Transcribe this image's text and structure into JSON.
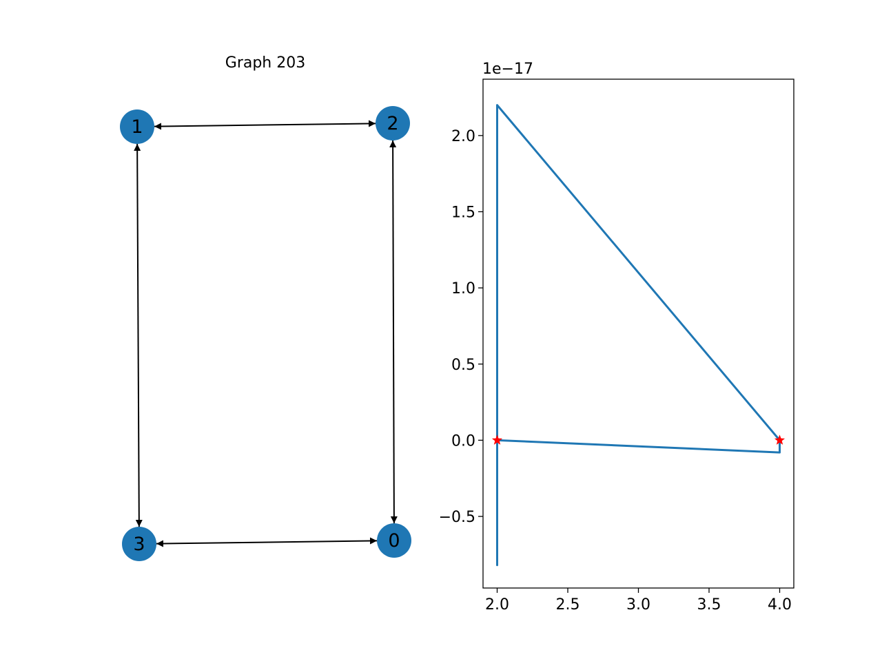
{
  "graph": {
    "title": "Graph 203",
    "nodes": [
      {
        "id": "0",
        "label": "0"
      },
      {
        "id": "1",
        "label": "1"
      },
      {
        "id": "2",
        "label": "2"
      },
      {
        "id": "3",
        "label": "3"
      }
    ],
    "edges": [
      {
        "from": "1",
        "to": "2",
        "bidirectional": true
      },
      {
        "from": "1",
        "to": "3",
        "bidirectional": true
      },
      {
        "from": "2",
        "to": "0",
        "bidirectional": true
      },
      {
        "from": "3",
        "to": "0",
        "bidirectional": true
      }
    ],
    "node_color": "#1f77b4",
    "edge_color": "#000000"
  },
  "chart_data": {
    "type": "line",
    "title": "",
    "xlabel": "",
    "ylabel": "",
    "y_offset_label": "1e−17",
    "xlim": [
      1.9,
      4.1
    ],
    "ylim": [
      -0.97,
      2.37
    ],
    "x_ticks": [
      2.0,
      2.5,
      3.0,
      3.5,
      4.0
    ],
    "x_tick_labels": [
      "2.0",
      "2.5",
      "3.0",
      "3.5",
      "4.0"
    ],
    "y_ticks": [
      -0.5,
      0.0,
      0.5,
      1.0,
      1.5,
      2.0
    ],
    "y_tick_labels": [
      "−0.5",
      "0.0",
      "0.5",
      "1.0",
      "1.5",
      "2.0"
    ],
    "grid": false,
    "series": [
      {
        "color": "#1f77b4",
        "points": [
          [
            2.0,
            2.08
          ],
          [
            2.0,
            -0.82
          ],
          [
            2.0,
            2.2
          ],
          [
            4.0,
            0.0
          ],
          [
            4.0,
            -0.08
          ],
          [
            2.0,
            0.0
          ]
        ]
      }
    ],
    "markers": {
      "color": "#ff0000",
      "shape": "star",
      "points": [
        [
          2.0,
          0.0
        ],
        [
          4.0,
          0.0
        ]
      ]
    }
  }
}
